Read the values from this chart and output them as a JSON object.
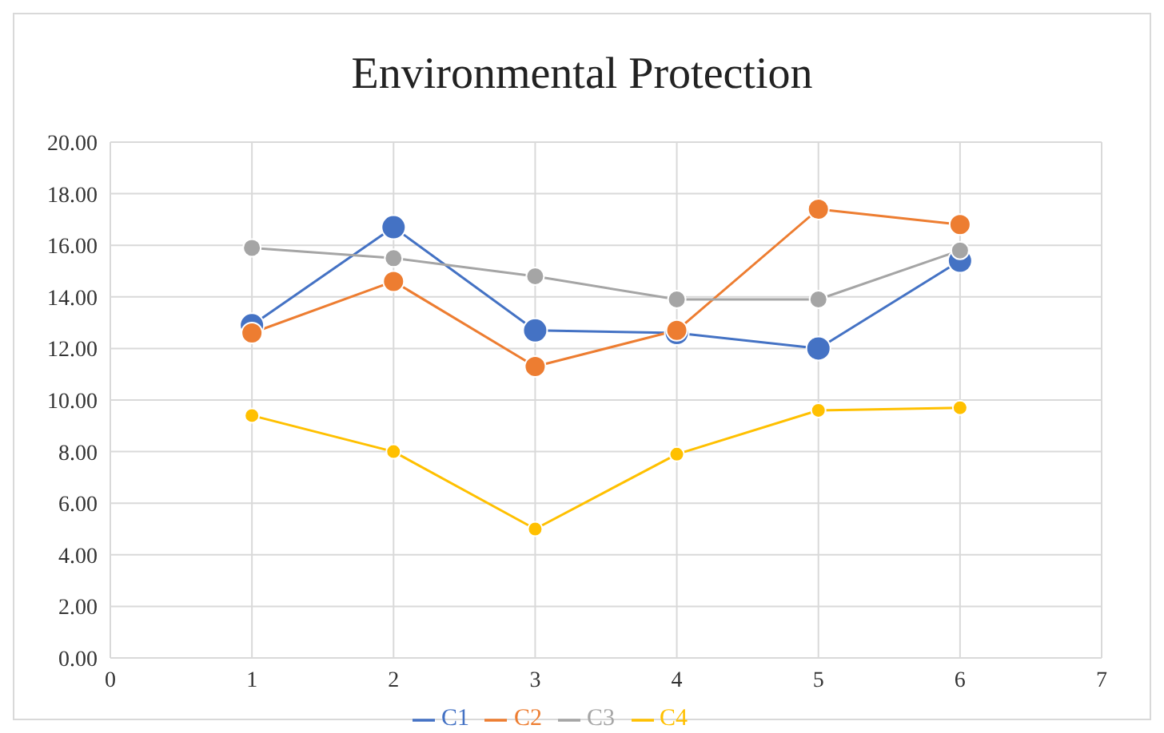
{
  "chart_data": {
    "type": "line",
    "title": "Environmental Protection",
    "x": [
      1,
      2,
      3,
      4,
      5,
      6
    ],
    "series": [
      {
        "name": "C1",
        "color": "#4472c4",
        "values": [
          12.9,
          16.7,
          12.7,
          12.6,
          12.0,
          15.4
        ]
      },
      {
        "name": "C2",
        "color": "#ed7d31",
        "values": [
          12.6,
          14.6,
          11.3,
          12.7,
          17.4,
          16.8
        ]
      },
      {
        "name": "C3",
        "color": "#a5a5a5",
        "values": [
          15.9,
          15.5,
          14.8,
          13.9,
          13.9,
          15.8
        ]
      },
      {
        "name": "C4",
        "color": "#ffc000",
        "values": [
          9.4,
          8.0,
          5.0,
          7.9,
          9.6,
          9.7
        ]
      }
    ],
    "xlim": [
      0,
      7
    ],
    "xticks": [
      0,
      1,
      2,
      3,
      4,
      5,
      6,
      7
    ],
    "ylim": [
      0,
      20
    ],
    "yticks": [
      {
        "value": 0,
        "label": "0.00"
      },
      {
        "value": 2,
        "label": "2.00"
      },
      {
        "value": 4,
        "label": "4.00"
      },
      {
        "value": 6,
        "label": "6.00"
      },
      {
        "value": 8,
        "label": "8.00"
      },
      {
        "value": 10,
        "label": "10.00"
      },
      {
        "value": 12,
        "label": "12.00"
      },
      {
        "value": 14,
        "label": "14.00"
      },
      {
        "value": 16,
        "label": "16.00"
      },
      {
        "value": 18,
        "label": "18.00"
      },
      {
        "value": 20,
        "label": "20.00"
      }
    ],
    "grid": true,
    "legend": "bottom",
    "marker": "circle",
    "line_style": "solid"
  }
}
